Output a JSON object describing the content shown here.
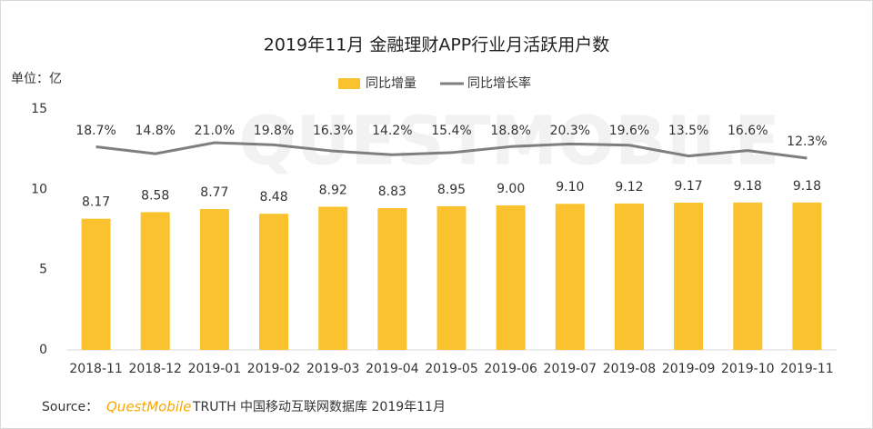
{
  "chart_data": {
    "type": "bar-line",
    "title": "2019年11月 金融理财APP行业月活跃用户数",
    "unit_label": "单位：亿",
    "watermark": "QUESTMOBILE",
    "source": {
      "prefix": "Source：",
      "brand": "QuestMobile",
      "text": "TRUTH 中国移动互联网数据库 2019年11月"
    },
    "categories": [
      "2018-11",
      "2018-12",
      "2019-01",
      "2019-02",
      "2019-03",
      "2019-04",
      "2019-05",
      "2019-06",
      "2019-07",
      "2019-08",
      "2019-09",
      "2019-10",
      "2019-11"
    ],
    "series": [
      {
        "name": "同比增量",
        "color": "#f9c22e",
        "type": "bar",
        "values": [
          8.17,
          8.58,
          8.77,
          8.48,
          8.92,
          8.83,
          8.95,
          9.0,
          9.1,
          9.12,
          9.17,
          9.18,
          9.18
        ],
        "value_labels": [
          "8.17",
          "8.58",
          "8.77",
          "8.48",
          "8.92",
          "8.83",
          "8.95",
          "9.00",
          "9.10",
          "9.12",
          "9.17",
          "9.18",
          "9.18"
        ]
      },
      {
        "name": "同比增长率",
        "color": "#7f7f7f",
        "type": "line",
        "axis": "y2",
        "values": [
          18.7,
          14.8,
          21.0,
          19.8,
          16.3,
          14.2,
          15.4,
          18.8,
          20.3,
          19.6,
          13.5,
          16.6,
          12.3
        ],
        "value_labels": [
          "18.7%",
          "14.8%",
          "21.0%",
          "19.8%",
          "16.3%",
          "14.2%",
          "15.4%",
          "18.8%",
          "20.3%",
          "19.6%",
          "13.5%",
          "16.6%",
          "12.3%"
        ]
      }
    ],
    "ylim": [
      0,
      15
    ],
    "yticks": [
      0,
      5,
      10,
      15
    ],
    "y2lim": [
      -96,
      40
    ],
    "grid": false
  }
}
